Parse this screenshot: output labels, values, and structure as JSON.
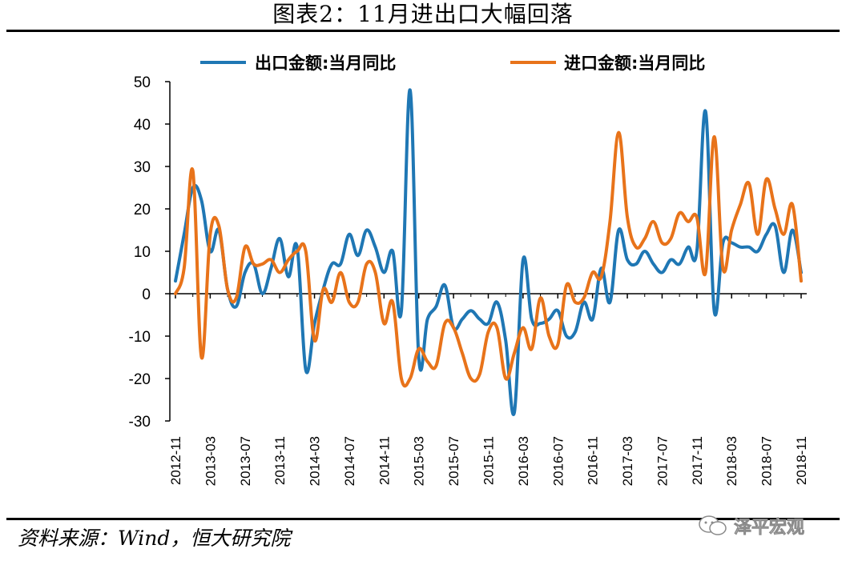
{
  "title": "图表2：11月进出口大幅回落",
  "source": "资料来源：Wind，恒大研究院",
  "watermark": "泽平宏观",
  "colors": {
    "export": "#1f77b4",
    "import": "#e8731a"
  },
  "chart_data": {
    "type": "line",
    "ylim": [
      -30,
      50
    ],
    "yticks": [
      50,
      40,
      30,
      20,
      10,
      0,
      -10,
      -20,
      -30
    ],
    "x": [
      "2012-11",
      "2012-12",
      "2013-01",
      "2013-02",
      "2013-03",
      "2013-04",
      "2013-05",
      "2013-06",
      "2013-07",
      "2013-08",
      "2013-09",
      "2013-10",
      "2013-11",
      "2013-12",
      "2014-01",
      "2014-02",
      "2014-03",
      "2014-04",
      "2014-05",
      "2014-06",
      "2014-07",
      "2014-08",
      "2014-09",
      "2014-10",
      "2014-11",
      "2014-12",
      "2015-01",
      "2015-02",
      "2015-03",
      "2015-04",
      "2015-05",
      "2015-06",
      "2015-07",
      "2015-08",
      "2015-09",
      "2015-10",
      "2015-11",
      "2015-12",
      "2016-01",
      "2016-02",
      "2016-03",
      "2016-04",
      "2016-05",
      "2016-06",
      "2016-07",
      "2016-08",
      "2016-09",
      "2016-10",
      "2016-11",
      "2016-12",
      "2017-01",
      "2017-02",
      "2017-03",
      "2017-04",
      "2017-05",
      "2017-06",
      "2017-07",
      "2017-08",
      "2017-09",
      "2017-10",
      "2017-11",
      "2017-12",
      "2018-01",
      "2018-02",
      "2018-03",
      "2018-04",
      "2018-05",
      "2018-06",
      "2018-07",
      "2018-08",
      "2018-09",
      "2018-10",
      "2018-11"
    ],
    "xticks": [
      "2012-11",
      "2013-03",
      "2013-07",
      "2013-11",
      "2014-03",
      "2014-07",
      "2014-11",
      "2015-03",
      "2015-07",
      "2015-11",
      "2016-03",
      "2016-07",
      "2016-11",
      "2017-03",
      "2017-07",
      "2017-11",
      "2018-03",
      "2018-07",
      "2018-11"
    ],
    "series": [
      {
        "name": "出口金额:当月同比",
        "color_key": "export",
        "values": [
          3,
          14,
          25,
          22,
          10,
          15,
          1,
          -3,
          5,
          7,
          0,
          6,
          13,
          4,
          11,
          -18,
          -7,
          1,
          7,
          7,
          14,
          9,
          15,
          11,
          5,
          10,
          -4,
          48,
          -15,
          -6,
          -3,
          2,
          -8,
          -6,
          -4,
          -6,
          -7,
          -2,
          -11,
          -28,
          8,
          -6,
          -7,
          -6,
          -4,
          -10,
          -9,
          -2,
          -6,
          6,
          -2,
          15,
          8,
          7,
          10,
          7,
          5,
          8,
          7,
          11,
          10,
          43,
          -4,
          12,
          12,
          11,
          11,
          10,
          14,
          16,
          5,
          15,
          5
        ]
      },
      {
        "name": "进口金额:当月同比",
        "color_key": "import",
        "values": [
          0,
          6,
          29,
          -15,
          14,
          16,
          1,
          -1,
          11,
          7,
          7,
          8,
          5,
          8,
          10,
          10,
          -11,
          1,
          -2,
          5,
          -2,
          -2,
          7,
          5,
          -7,
          -2,
          -20,
          -20,
          -13,
          -16,
          -17,
          -7,
          -8,
          -14,
          -20,
          -19,
          -9,
          -8,
          -20,
          -14,
          -8,
          -13,
          -1,
          -10,
          -12,
          2,
          -2,
          -1,
          5,
          4,
          17,
          38,
          18,
          11,
          13,
          17,
          12,
          13,
          19,
          17,
          18,
          5,
          37,
          6,
          15,
          21,
          26,
          14,
          27,
          20,
          14,
          21,
          3
        ]
      }
    ]
  }
}
